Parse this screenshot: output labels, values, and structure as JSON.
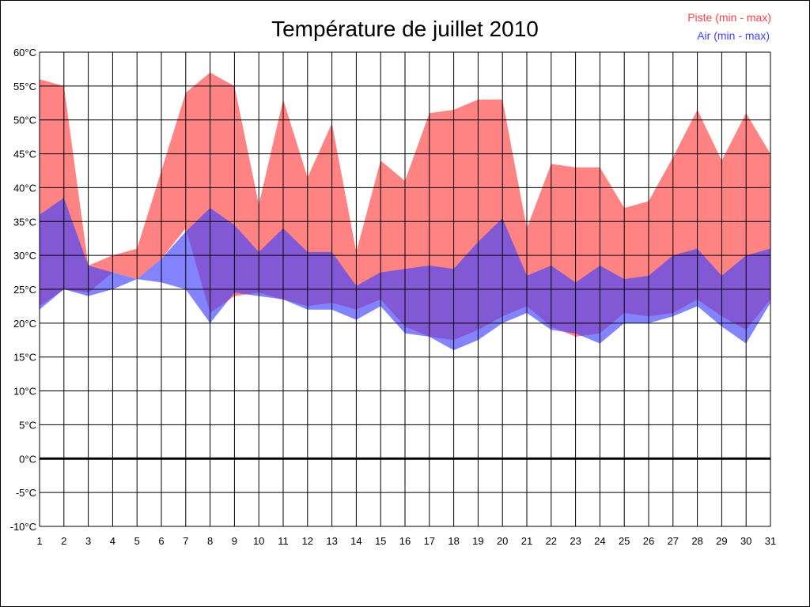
{
  "chart_data": {
    "type": "area",
    "title": "Température de juillet 2010",
    "xlabel": "",
    "ylabel": "",
    "ylim": [
      -10,
      60
    ],
    "ytick_step": 5,
    "ytick_suffix": "°C",
    "grid": true,
    "legend_position": "top-right",
    "categories": [
      1,
      2,
      3,
      4,
      5,
      6,
      7,
      8,
      9,
      10,
      11,
      12,
      13,
      14,
      15,
      16,
      17,
      18,
      19,
      20,
      21,
      22,
      23,
      24,
      25,
      26,
      27,
      28,
      29,
      30,
      31
    ],
    "series": [
      {
        "name": "Piste (min - max)",
        "color": "#ff4040",
        "min": [
          22.5,
          25,
          24.5,
          27.5,
          26.5,
          29.5,
          34,
          21.5,
          24,
          24.5,
          23.5,
          22.5,
          23,
          22,
          23.5,
          19.5,
          18,
          17.5,
          19,
          21,
          22.5,
          19.5,
          18,
          18.5,
          21.5,
          21,
          21.5,
          23.5,
          21,
          19,
          23.5
        ],
        "max": [
          56,
          55,
          28.5,
          30,
          31,
          42.5,
          54,
          57,
          55,
          37.5,
          53,
          41.5,
          49.5,
          30.5,
          44,
          41,
          51,
          51.5,
          53,
          53,
          34,
          43.5,
          43,
          43,
          37,
          38,
          44.5,
          51.5,
          44,
          51,
          45
        ]
      },
      {
        "name": "Air (min - max)",
        "color": "#4040ff",
        "min": [
          22,
          25,
          24,
          25,
          26.5,
          26,
          25,
          20,
          24.5,
          24,
          23.5,
          22,
          22,
          20.5,
          22.5,
          18.5,
          18,
          16,
          17.5,
          20,
          21.5,
          19,
          18.5,
          17,
          20,
          20,
          21,
          22.5,
          19.5,
          17,
          23
        ],
        "max": [
          36,
          38.5,
          28.5,
          27.5,
          26.5,
          29.5,
          33.5,
          37,
          34.5,
          30.5,
          34,
          30.5,
          30.5,
          25.5,
          27.5,
          28,
          28.5,
          28,
          32,
          35.5,
          27,
          28.5,
          26,
          28.5,
          26.5,
          27,
          30,
          31,
          27,
          30,
          31
        ]
      }
    ]
  }
}
